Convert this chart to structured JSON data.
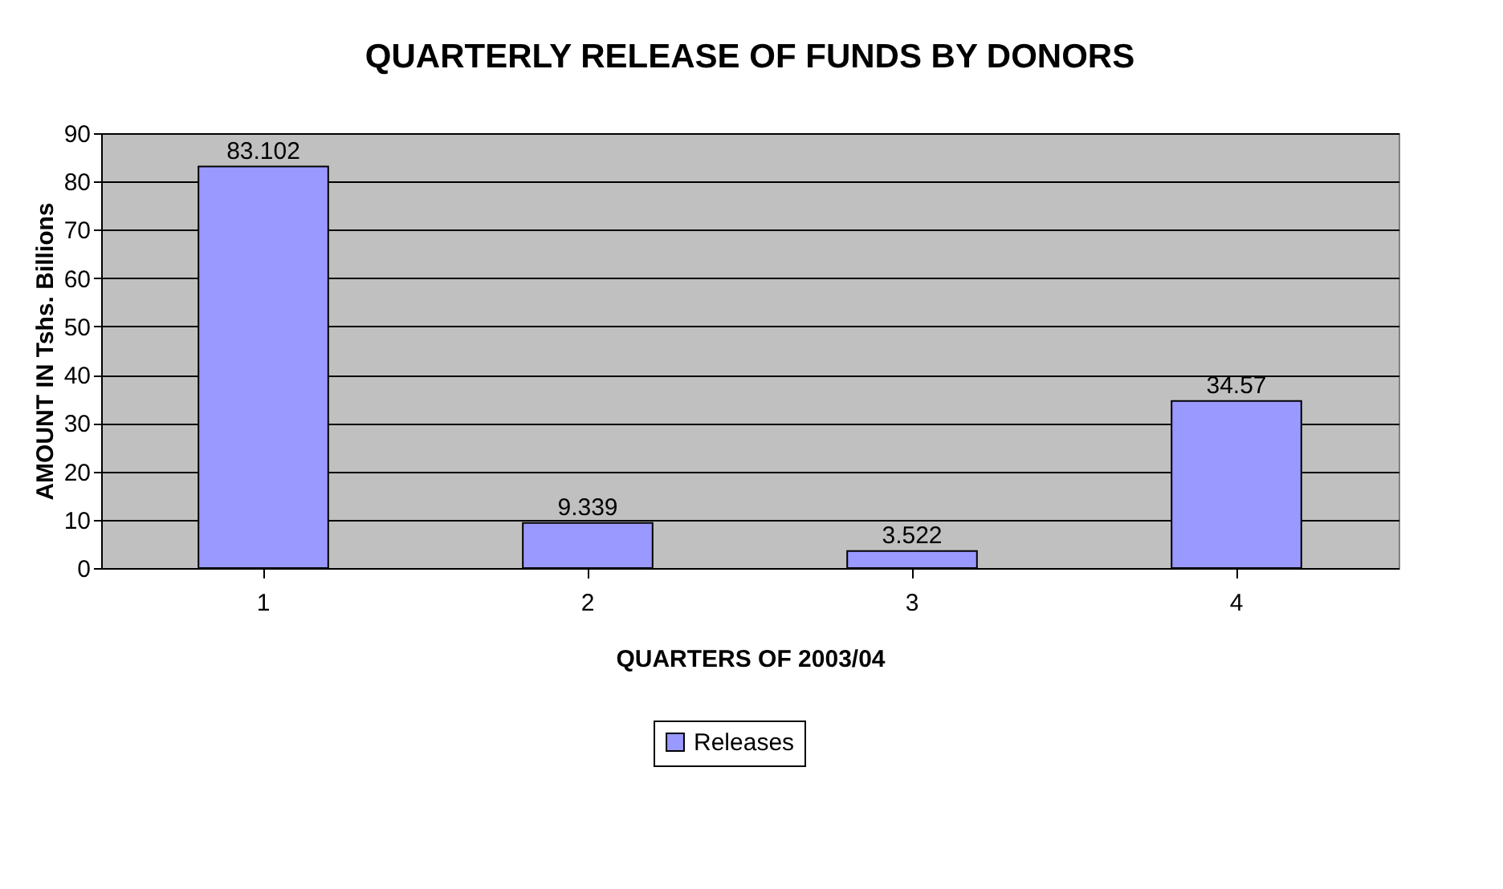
{
  "chart_data": {
    "type": "bar",
    "title": "QUARTERLY RELEASE OF FUNDS BY DONORS",
    "xlabel": "QUARTERS OF 2003/04",
    "ylabel": "AMOUNT IN Tshs. Billions",
    "categories": [
      "1",
      "2",
      "3",
      "4"
    ],
    "series": [
      {
        "name": "Releases",
        "color": "#9999ff",
        "values": [
          83.102,
          9.339,
          3.522,
          34.57
        ]
      }
    ],
    "ylim": [
      0,
      90
    ],
    "yticks": [
      0,
      10,
      20,
      30,
      40,
      50,
      60,
      70,
      80,
      90
    ],
    "grid": "y",
    "data_labels": true,
    "legend": "bottom"
  }
}
